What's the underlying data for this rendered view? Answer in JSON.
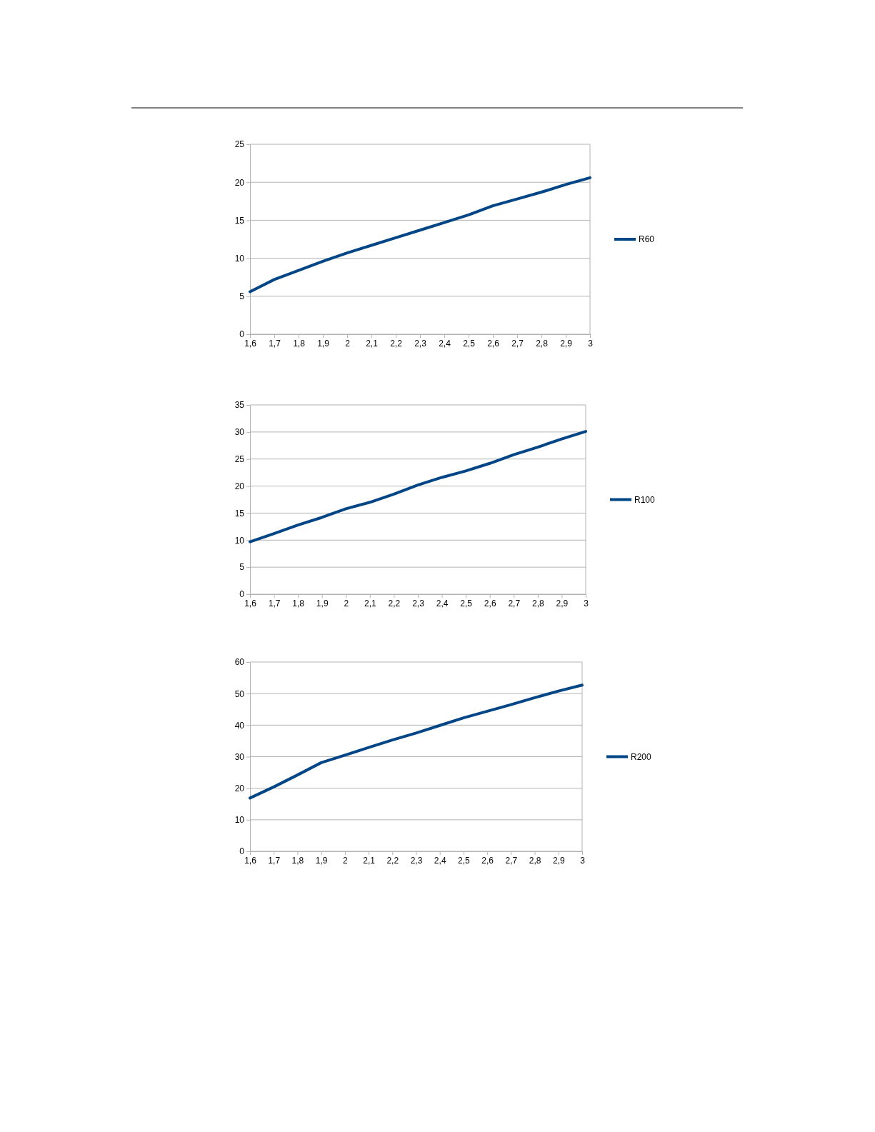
{
  "chart_data": [
    {
      "type": "line",
      "categories": [
        "1,6",
        "1,7",
        "1,8",
        "1,9",
        "2",
        "2,1",
        "2,2",
        "2,3",
        "2,4",
        "2,5",
        "2,6",
        "2,7",
        "2,8",
        "2,9",
        "3"
      ],
      "ylim": [
        0,
        25
      ],
      "yticks": [
        0,
        5,
        10,
        15,
        20,
        25
      ],
      "grid": "y",
      "legend": "right",
      "series": [
        {
          "name": "R60",
          "color": "#004586",
          "values": [
            5.6,
            7.2,
            8.4,
            9.6,
            10.7,
            11.7,
            12.7,
            13.7,
            14.7,
            15.7,
            16.9,
            17.8,
            18.7,
            19.7,
            20.6
          ]
        }
      ]
    },
    {
      "type": "line",
      "categories": [
        "1,6",
        "1,7",
        "1,8",
        "1,9",
        "2",
        "2,1",
        "2,2",
        "2,3",
        "2,4",
        "2,5",
        "2,6",
        "2,7",
        "2,8",
        "2,9",
        "3"
      ],
      "ylim": [
        0,
        35
      ],
      "yticks": [
        0,
        5,
        10,
        15,
        20,
        25,
        30,
        35
      ],
      "grid": "y",
      "legend": "right",
      "series": [
        {
          "name": "R100",
          "color": "#004586",
          "values": [
            9.7,
            11.2,
            12.8,
            14.2,
            15.8,
            17.0,
            18.5,
            20.2,
            21.6,
            22.8,
            24.2,
            25.8,
            27.2,
            28.7,
            30.1
          ]
        }
      ]
    },
    {
      "type": "line",
      "categories": [
        "1,6",
        "1,7",
        "1,8",
        "1,9",
        "2",
        "2,1",
        "2,2",
        "2,3",
        "2,4",
        "2,5",
        "2,6",
        "2,7",
        "2,8",
        "2,9",
        "3"
      ],
      "ylim": [
        0,
        60
      ],
      "yticks": [
        0,
        10,
        20,
        30,
        40,
        50,
        60
      ],
      "grid": "y",
      "legend": "right",
      "series": [
        {
          "name": "R200",
          "color": "#004586",
          "values": [
            16.9,
            20.4,
            24.2,
            28.1,
            30.5,
            32.9,
            35.3,
            37.5,
            39.9,
            42.3,
            44.4,
            46.5,
            48.7,
            50.8,
            52.7
          ]
        }
      ]
    }
  ]
}
